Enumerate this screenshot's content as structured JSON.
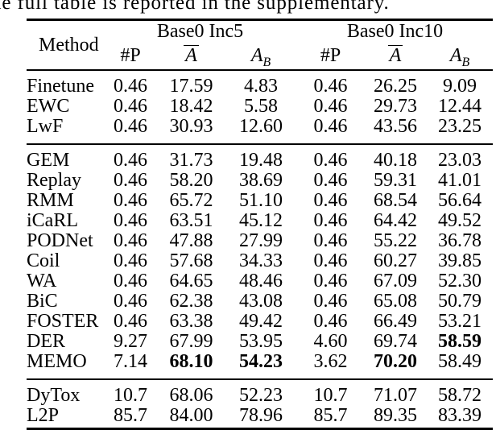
{
  "context_line": "he full table is reported in the supplementary.",
  "table": {
    "method_header": "Method",
    "groups": [
      {
        "label": "Base0 Inc5"
      },
      {
        "label": "Base0 Inc10"
      }
    ],
    "subheaders": {
      "params_label": "#P",
      "avg_letter": "A",
      "base_letter": "A",
      "base_subscript": "B"
    },
    "sections": [
      {
        "rows": [
          {
            "method": "Finetune",
            "values": [
              "0.46",
              "17.59",
              "4.83",
              "0.46",
              "26.25",
              "9.09"
            ],
            "bold": []
          },
          {
            "method": "EWC",
            "values": [
              "0.46",
              "18.42",
              "5.58",
              "0.46",
              "29.73",
              "12.44"
            ],
            "bold": []
          },
          {
            "method": "LwF",
            "values": [
              "0.46",
              "30.93",
              "12.60",
              "0.46",
              "43.56",
              "23.25"
            ],
            "bold": []
          }
        ]
      },
      {
        "rows": [
          {
            "method": "GEM",
            "values": [
              "0.46",
              "31.73",
              "19.48",
              "0.46",
              "40.18",
              "23.03"
            ],
            "bold": []
          },
          {
            "method": "Replay",
            "values": [
              "0.46",
              "58.20",
              "38.69",
              "0.46",
              "59.31",
              "41.01"
            ],
            "bold": []
          },
          {
            "method": "RMM",
            "values": [
              "0.46",
              "65.72",
              "51.10",
              "0.46",
              "68.54",
              "56.64"
            ],
            "bold": []
          },
          {
            "method": "iCaRL",
            "values": [
              "0.46",
              "63.51",
              "45.12",
              "0.46",
              "64.42",
              "49.52"
            ],
            "bold": []
          },
          {
            "method": "PODNet",
            "values": [
              "0.46",
              "47.88",
              "27.99",
              "0.46",
              "55.22",
              "36.78"
            ],
            "bold": []
          },
          {
            "method": "Coil",
            "values": [
              "0.46",
              "57.68",
              "34.33",
              "0.46",
              "60.27",
              "39.85"
            ],
            "bold": []
          },
          {
            "method": "WA",
            "values": [
              "0.46",
              "64.65",
              "48.46",
              "0.46",
              "67.09",
              "52.30"
            ],
            "bold": []
          },
          {
            "method": "BiC",
            "values": [
              "0.46",
              "62.38",
              "43.08",
              "0.46",
              "65.08",
              "50.79"
            ],
            "bold": []
          },
          {
            "method": "FOSTER",
            "values": [
              "0.46",
              "63.38",
              "49.42",
              "0.46",
              "66.49",
              "53.21"
            ],
            "bold": []
          },
          {
            "method": "DER",
            "values": [
              "9.27",
              "67.99",
              "53.95",
              "4.60",
              "69.74",
              "58.59"
            ],
            "bold": [
              5
            ]
          },
          {
            "method": "MEMO",
            "values": [
              "7.14",
              "68.10",
              "54.23",
              "3.62",
              "70.20",
              "58.49"
            ],
            "bold": [
              1,
              2,
              4
            ]
          }
        ]
      },
      {
        "rows": [
          {
            "method": "DyTox",
            "values": [
              "10.7",
              "68.06",
              "52.23",
              "10.7",
              "71.07",
              "58.72"
            ],
            "bold": []
          },
          {
            "method": "L2P",
            "values": [
              "85.7",
              "84.00",
              "78.96",
              "85.7",
              "89.35",
              "83.39"
            ],
            "bold": []
          }
        ]
      }
    ]
  }
}
